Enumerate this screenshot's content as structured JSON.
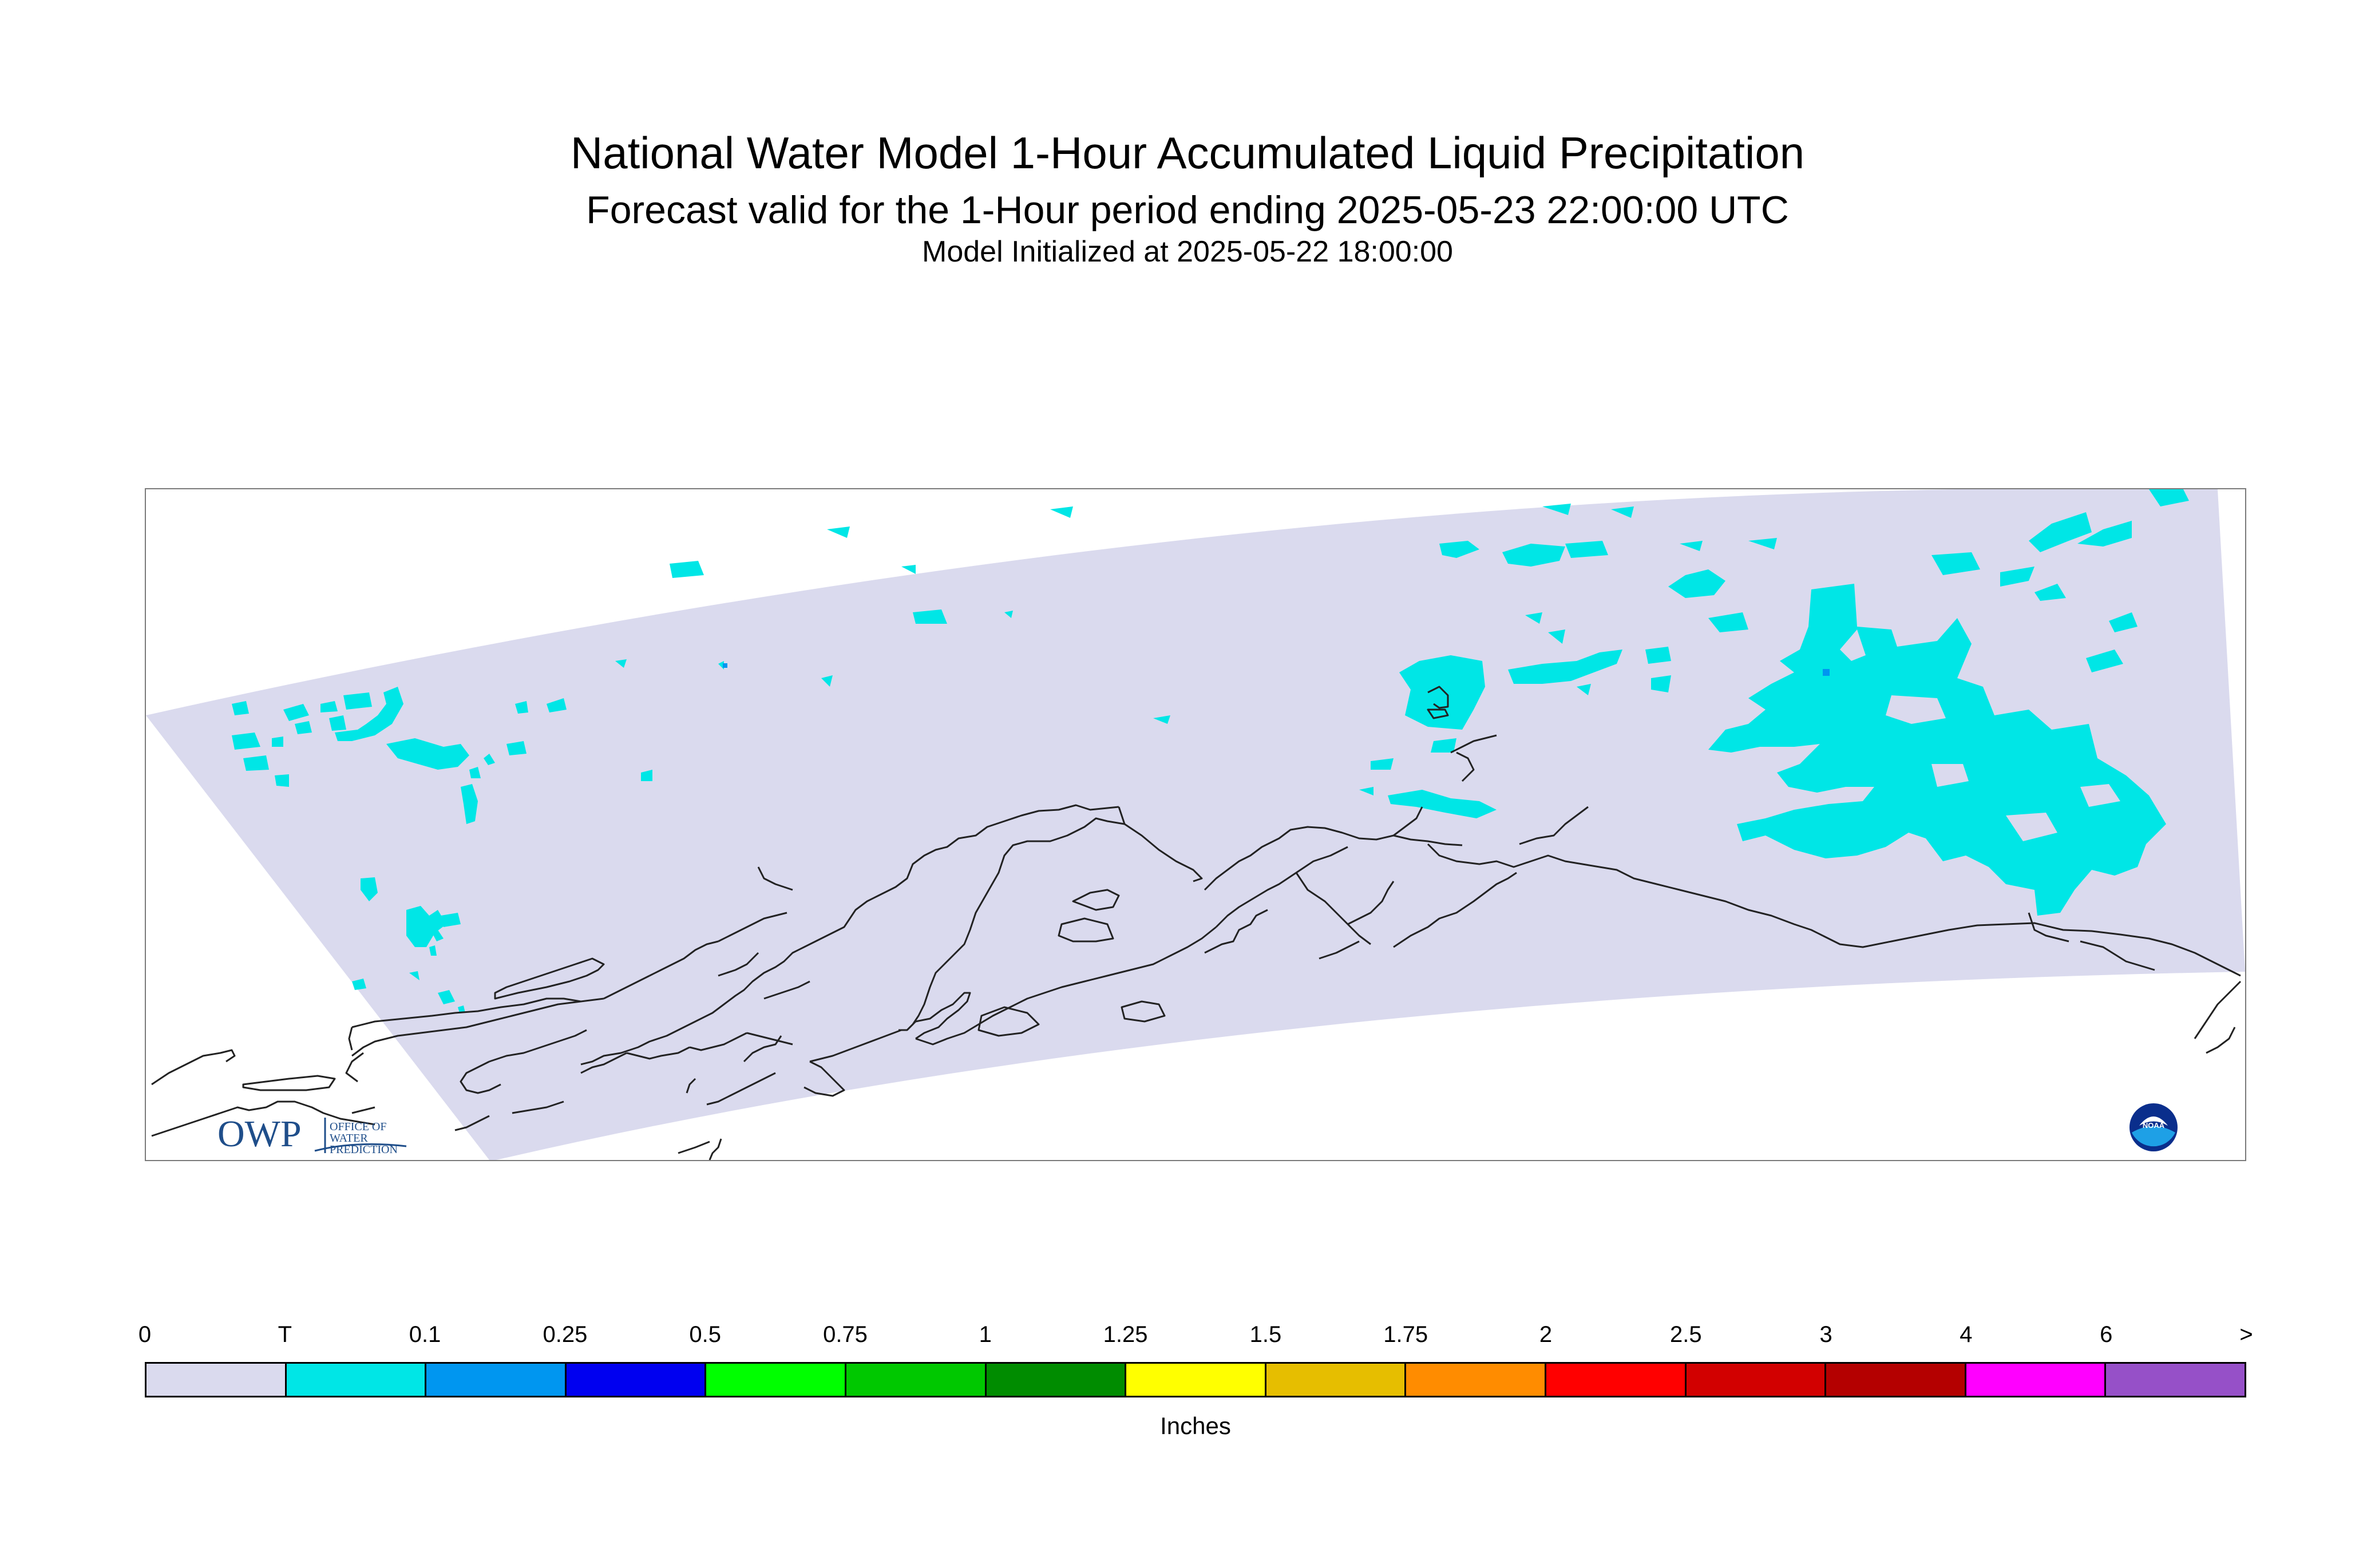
{
  "title": "National Water Model 1-Hour Accumulated Liquid Precipitation",
  "subtitle": "Forecast valid for the 1-Hour period ending 2025-05-23 22:00:00 UTC",
  "init_line": "Model Initialized at 2025-05-22 18:00:00",
  "owp_logo": {
    "mark": "OWP",
    "line1": "OFFICE OF",
    "line2": "WATER",
    "line3": "PREDICTION"
  },
  "noaa_logo": {
    "text": "NOAA"
  },
  "legend": {
    "ticks": [
      "0",
      "T",
      "0.1",
      "0.25",
      "0.5",
      "0.75",
      "1",
      "1.25",
      "1.5",
      "1.75",
      "2",
      "2.5",
      "3",
      "4",
      "6",
      ">"
    ],
    "colors": [
      "#dadaee",
      "#00e6e6",
      "#0096f0",
      "#0000f0",
      "#00ff00",
      "#00c800",
      "#008c00",
      "#ffff00",
      "#e6be00",
      "#ff8c00",
      "#ff0000",
      "#d20000",
      "#b40000",
      "#ff00ff",
      "#9650c8"
    ],
    "units": "Inches"
  },
  "map": {
    "domain_fill": "#dadaee",
    "precip_fill": "#00e6e6",
    "heavier_fill": "#0096f0",
    "coast_color": "#222222"
  }
}
